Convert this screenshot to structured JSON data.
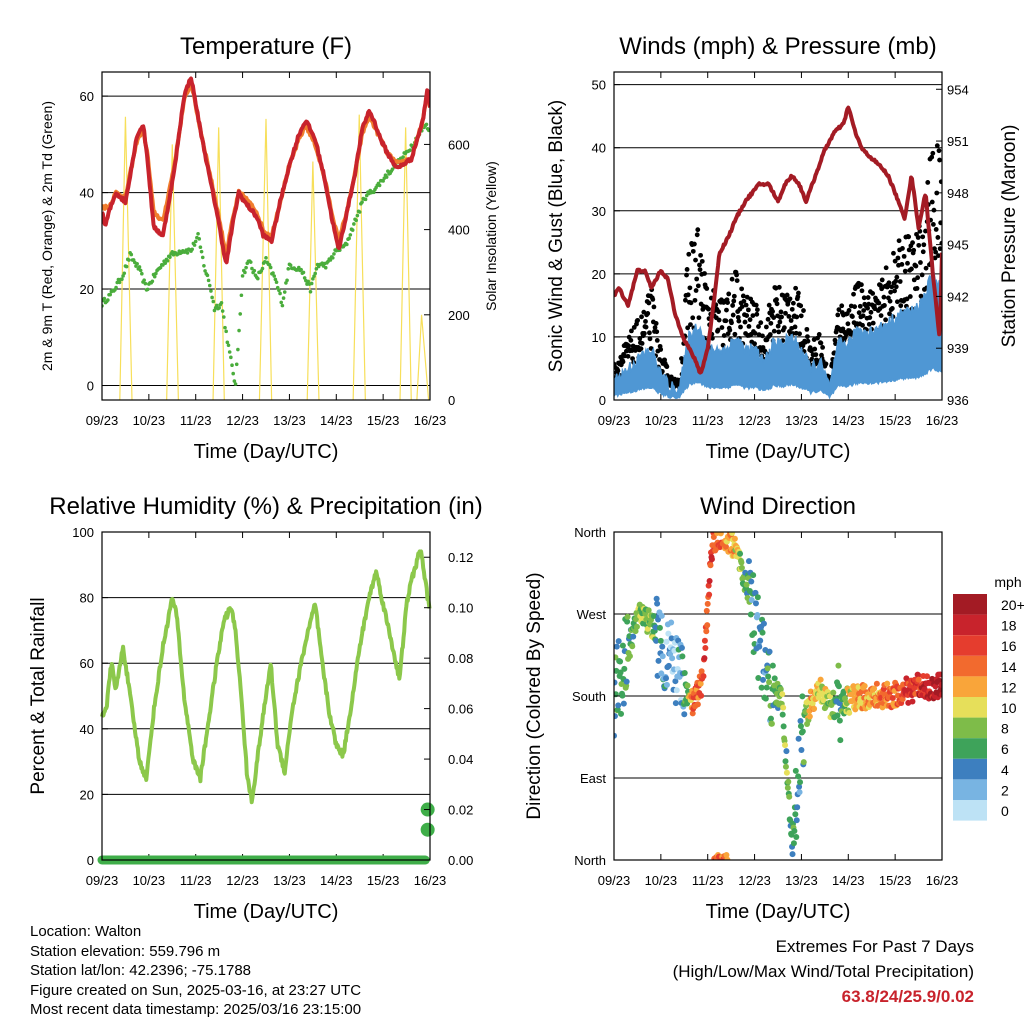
{
  "colors": {
    "temp_2m": "#c8232c",
    "temp_9m": "#f07d2d",
    "dewpoint": "#4aad3c",
    "solar": "#f7df5a",
    "pressure": "#a31b24",
    "gust": "#000000",
    "wind": "#4f97d4",
    "rh": "#8cc84b",
    "precip": "#3fae49"
  },
  "chart_data": [
    {
      "type": "line",
      "title": "Temperature (F)",
      "xlabel": "Time (Day/UTC)",
      "ylabel": "2m & 9m T (Red, Orange) & 2m Td (Green)",
      "y2label": "Solar Insolation (Yellow)",
      "x_ticks": [
        "09/23",
        "10/23",
        "11/23",
        "12/23",
        "13/23",
        "14/23",
        "15/23",
        "16/23"
      ],
      "ylim": [
        -3,
        65
      ],
      "y_ticks": [
        0,
        20,
        40,
        60
      ],
      "y2lim": [
        0,
        770
      ],
      "y2_ticks": [
        0,
        200,
        400,
        600
      ],
      "x_unit": "day index (0 = 09/23 ... 7 = 16/23)",
      "series": [
        {
          "name": "2m T",
          "color_key": "temp_2m",
          "x": [
            0,
            0.07,
            0.15,
            0.3,
            0.5,
            0.75,
            0.88,
            0.97,
            1.1,
            1.3,
            1.55,
            1.75,
            1.9,
            2.1,
            2.3,
            2.45,
            2.65,
            2.78,
            2.92,
            3.05,
            3.3,
            3.45,
            3.62,
            3.8,
            3.98,
            4.2,
            4.35,
            4.55,
            4.75,
            4.9,
            5.05,
            5.25,
            5.4,
            5.55,
            5.7,
            5.8,
            5.95,
            6.1,
            6.3,
            6.6,
            6.85,
            6.95,
            7.0
          ],
          "y": [
            36,
            33,
            36,
            40,
            38,
            52,
            54,
            47,
            33,
            31,
            45,
            60,
            64,
            53,
            43,
            36,
            25,
            33,
            40,
            38,
            35,
            31,
            30,
            38,
            45,
            52,
            55,
            51,
            43,
            35,
            28,
            37,
            44,
            53,
            57,
            55,
            51,
            48,
            45,
            47,
            55,
            62,
            58
          ]
        },
        {
          "name": "9m T",
          "color_key": "temp_9m",
          "x": [
            0,
            0.15,
            0.3,
            0.5,
            0.75,
            0.88,
            0.97,
            1.1,
            1.3,
            1.55,
            1.75,
            1.9,
            2.1,
            2.3,
            2.45,
            2.65,
            2.78,
            2.92,
            3.05,
            3.3,
            3.45,
            3.62,
            3.8,
            3.98,
            4.2,
            4.35,
            4.55,
            4.75,
            4.9,
            5.05,
            5.25,
            5.4,
            5.55,
            5.7,
            5.8,
            5.95,
            6.1,
            6.3,
            6.6,
            6.85,
            6.95,
            7.0
          ],
          "y": [
            37,
            37,
            40,
            39,
            51,
            53,
            48,
            36,
            34,
            46,
            59,
            63,
            53,
            44,
            37,
            27,
            34,
            40,
            39,
            36,
            32,
            31,
            38,
            45,
            51,
            54,
            50,
            43,
            36,
            30,
            37,
            44,
            52,
            56,
            54,
            51,
            48,
            46,
            47,
            55,
            61,
            58
          ]
        },
        {
          "name": "2m Td",
          "color_key": "dewpoint",
          "x": [
            0,
            0.2,
            0.45,
            0.6,
            0.8,
            0.95,
            1.2,
            1.45,
            1.7,
            1.9,
            2.05,
            2.2,
            2.3,
            2.4,
            2.55,
            2.7,
            2.85,
            3.0,
            3.15,
            3.3,
            3.5,
            3.7,
            3.85,
            4.0,
            4.25,
            4.45,
            4.6,
            4.8,
            5.0,
            5.2,
            5.4,
            5.6,
            5.85,
            6.1,
            6.4,
            6.7,
            6.9,
            7.0
          ],
          "y": [
            17,
            19,
            23,
            27,
            24,
            20,
            24,
            27,
            28,
            28,
            31,
            24,
            21,
            16,
            17,
            8,
            0,
            23,
            26,
            22,
            26,
            22,
            17,
            25,
            24,
            20,
            25,
            25,
            28,
            29,
            34,
            39,
            41,
            44,
            47,
            51,
            54,
            53
          ]
        }
      ],
      "solar_pulses": [
        {
          "x0": 0.38,
          "peak_x": 0.5,
          "x1": 0.64,
          "peak": 665
        },
        {
          "x0": 1.38,
          "peak_x": 1.5,
          "x1": 1.63,
          "peak": 600
        },
        {
          "x0": 2.37,
          "peak_x": 2.49,
          "x1": 2.61,
          "peak": 640
        },
        {
          "x0": 3.36,
          "peak_x": 3.5,
          "x1": 3.62,
          "peak": 660
        },
        {
          "x0": 4.38,
          "peak_x": 4.5,
          "x1": 4.63,
          "peak": 560
        },
        {
          "x0": 5.36,
          "peak_x": 5.49,
          "x1": 5.62,
          "peak": 670
        },
        {
          "x0": 6.36,
          "peak_x": 6.48,
          "x1": 6.6,
          "peak": 640
        },
        {
          "x0": 6.72,
          "peak_x": 6.82,
          "x1": 6.97,
          "peak": 200
        }
      ]
    },
    {
      "type": "scatter",
      "title": "Winds (mph) & Pressure (mb)",
      "xlabel": "Time (Day/UTC)",
      "ylabel": "Sonic Wind & Gust (Blue, Black)",
      "y2label": "Station Pressure (Maroon)",
      "x_ticks": [
        "09/23",
        "10/23",
        "11/23",
        "12/23",
        "13/23",
        "14/23",
        "15/23",
        "16/23"
      ],
      "ylim": [
        0,
        52
      ],
      "y_ticks": [
        0,
        10,
        20,
        30,
        40,
        50
      ],
      "y2lim": [
        936,
        955
      ],
      "y2_ticks": [
        936,
        939,
        942,
        945,
        948,
        951,
        954
      ],
      "series": [
        {
          "name": "Gust",
          "color_key": "gust",
          "envelope_x": [
            0,
            0.3,
            0.6,
            0.8,
            1.0,
            1.2,
            1.4,
            1.6,
            1.8,
            2.0,
            2.2,
            2.4,
            2.6,
            2.8,
            3.0,
            3.2,
            3.4,
            3.6,
            3.8,
            4.0,
            4.2,
            4.4,
            4.6,
            4.8,
            5.0,
            5.2,
            5.4,
            5.6,
            5.8,
            6.0,
            6.2,
            6.4,
            6.6,
            6.8,
            7.0
          ],
          "envelope_y": [
            6,
            10,
            14,
            18,
            8,
            4,
            3,
            26,
            28,
            18,
            17,
            17,
            21,
            17,
            16,
            11,
            19,
            18,
            19,
            16,
            9,
            11,
            3,
            16,
            15,
            19,
            18,
            17,
            21,
            24,
            27,
            26,
            30,
            42,
            40
          ]
        },
        {
          "name": "Wind",
          "color_key": "wind",
          "envelope_x": [
            0,
            0.3,
            0.6,
            0.8,
            1.0,
            1.2,
            1.4,
            1.6,
            1.8,
            2.0,
            2.2,
            2.4,
            2.6,
            2.8,
            3.0,
            3.2,
            3.4,
            3.6,
            3.8,
            4.0,
            4.2,
            4.4,
            4.6,
            4.8,
            5.0,
            5.2,
            5.4,
            5.6,
            5.8,
            6.0,
            6.2,
            6.4,
            6.6,
            6.8,
            7.0
          ],
          "envelope_y": [
            3,
            5,
            7,
            8,
            4,
            2,
            2,
            10,
            12,
            8,
            8,
            8,
            10,
            8,
            8,
            6,
            9,
            9,
            10,
            8,
            5,
            6,
            2,
            9,
            9,
            11,
            11,
            11,
            12,
            13,
            14,
            14,
            16,
            20,
            18
          ]
        },
        {
          "name": "Pressure",
          "color_key": "pressure",
          "axis": "y2",
          "x": [
            0,
            0.1,
            0.3,
            0.5,
            0.65,
            0.8,
            1.0,
            1.15,
            1.3,
            1.5,
            1.7,
            1.85,
            2.0,
            2.1,
            2.25,
            2.45,
            2.6,
            2.8,
            2.95,
            3.1,
            3.3,
            3.5,
            3.65,
            3.8,
            3.95,
            4.1,
            4.3,
            4.5,
            4.7,
            4.9,
            5.0,
            5.15,
            5.3,
            5.5,
            5.7,
            5.85,
            6.0,
            6.2,
            6.35,
            6.5,
            6.65,
            6.8,
            6.95,
            7.0
          ],
          "y": [
            942,
            942.5,
            941.5,
            943.5,
            943.5,
            942.5,
            943.5,
            943,
            941,
            939.5,
            938.5,
            937.5,
            939,
            941,
            944.5,
            945.5,
            946.5,
            947.5,
            948,
            948.5,
            948.5,
            947.5,
            948.5,
            949,
            948.5,
            947.5,
            949,
            950.5,
            951.5,
            952,
            953,
            951.5,
            950.5,
            950,
            949.5,
            949,
            948,
            946.5,
            949,
            946,
            948,
            943.5,
            939.5,
            944.5
          ]
        }
      ]
    },
    {
      "type": "line",
      "title": "Relative Humidity (%) & Precipitation (in)",
      "xlabel": "Time (Day/UTC)",
      "ylabel": "Percent & Total Rainfall",
      "x_ticks": [
        "09/23",
        "10/23",
        "11/23",
        "12/23",
        "13/23",
        "14/23",
        "15/23",
        "16/23"
      ],
      "ylim": [
        0,
        100
      ],
      "y_ticks": [
        0,
        20,
        40,
        60,
        80,
        100
      ],
      "y2lim": [
        0,
        0.13
      ],
      "y2_ticks": [
        "0.00",
        "0.02",
        "0.04",
        "0.06",
        "0.08",
        "0.10",
        "0.12"
      ],
      "series": [
        {
          "name": "RH",
          "color_key": "rh",
          "x": [
            0,
            0.1,
            0.2,
            0.3,
            0.45,
            0.55,
            0.65,
            0.8,
            0.95,
            1.1,
            1.3,
            1.5,
            1.6,
            1.75,
            1.95,
            2.1,
            2.3,
            2.45,
            2.6,
            2.75,
            2.85,
            3.0,
            3.1,
            3.2,
            3.4,
            3.6,
            3.75,
            3.9,
            4.05,
            4.25,
            4.4,
            4.55,
            4.7,
            4.85,
            5.0,
            5.15,
            5.35,
            5.5,
            5.7,
            5.85,
            6.0,
            6.2,
            6.35,
            6.5,
            6.6,
            6.8,
            6.95,
            7.0
          ],
          "y": [
            44,
            47,
            60,
            52,
            65,
            55,
            45,
            30,
            25,
            45,
            65,
            80,
            74,
            50,
            30,
            25,
            45,
            60,
            73,
            77,
            70,
            45,
            25,
            18,
            40,
            60,
            35,
            27,
            45,
            60,
            70,
            78,
            60,
            45,
            35,
            32,
            50,
            65,
            80,
            88,
            78,
            65,
            55,
            78,
            85,
            95,
            80,
            75
          ]
        },
        {
          "name": "Precip",
          "color_key": "precip",
          "axis": "y2",
          "x": [
            0,
            6.85,
            6.87,
            6.92,
            7.0
          ],
          "y": [
            0,
            0,
            0.012,
            0.02,
            0.02
          ]
        }
      ]
    },
    {
      "type": "scatter",
      "title": "Wind Direction",
      "xlabel": "Time (Day/UTC)",
      "ylabel": "Direction (Colored By Speed)",
      "x_ticks": [
        "09/23",
        "10/23",
        "11/23",
        "12/23",
        "13/23",
        "14/23",
        "15/23",
        "16/23"
      ],
      "y_labels": [
        "North",
        "East",
        "South",
        "West",
        "North"
      ],
      "ylim": [
        0,
        360
      ],
      "legend_title": "mph",
      "legend_labels": [
        "20+",
        "18",
        "16",
        "14",
        "12",
        "10",
        "8",
        "6",
        "4",
        "2",
        "0"
      ],
      "legend_colors": [
        "#a31b24",
        "#c8232c",
        "#e53d2e",
        "#f26a2e",
        "#f9a53a",
        "#e6df5a",
        "#7ebc49",
        "#3ea35a",
        "#3d7fbf",
        "#78b4e2",
        "#bde2f5"
      ],
      "series": [
        {
          "name": "direction",
          "x": [
            0,
            0.3,
            0.55,
            0.8,
            1.0,
            1.2,
            1.45,
            1.7,
            1.9,
            2.1,
            2.3,
            2.5,
            2.65,
            2.85,
            3.0,
            3.3,
            3.6,
            3.8,
            4.0,
            4.2,
            4.4,
            4.6,
            4.8,
            5.0,
            5.3,
            5.6,
            5.9,
            6.2,
            6.5,
            6.8,
            7.0
          ],
          "y": [
            180,
            230,
            270,
            260,
            240,
            220,
            190,
            170,
            200,
            350,
            355,
            350,
            330,
            300,
            260,
            200,
            170,
            10,
            140,
            175,
            185,
            170,
            170,
            175,
            180,
            180,
            180,
            185,
            190,
            190,
            190
          ],
          "speed": [
            5,
            6,
            8,
            9,
            3,
            2,
            3,
            14,
            15,
            16,
            14,
            12,
            10,
            6,
            4,
            5,
            8,
            6,
            4,
            12,
            10,
            8,
            5,
            10,
            12,
            13,
            14,
            16,
            17,
            19,
            20
          ]
        }
      ]
    }
  ],
  "info": {
    "location": "Location: Walton",
    "elevation": "Station elevation: 559.796 m",
    "latlon": "Station lat/lon: 42.2396; -75.1788",
    "created": "Figure created on Sun, 2025-03-16, at 23:27 UTC",
    "recent": "Most recent data timestamp: 2025/03/16 23:15:00"
  },
  "extremes": {
    "title": "Extremes For Past 7 Days",
    "subtitle": "(High/Low/Max Wind/Total Precipitation)",
    "values": "63.8/24/25.9/0.02"
  }
}
